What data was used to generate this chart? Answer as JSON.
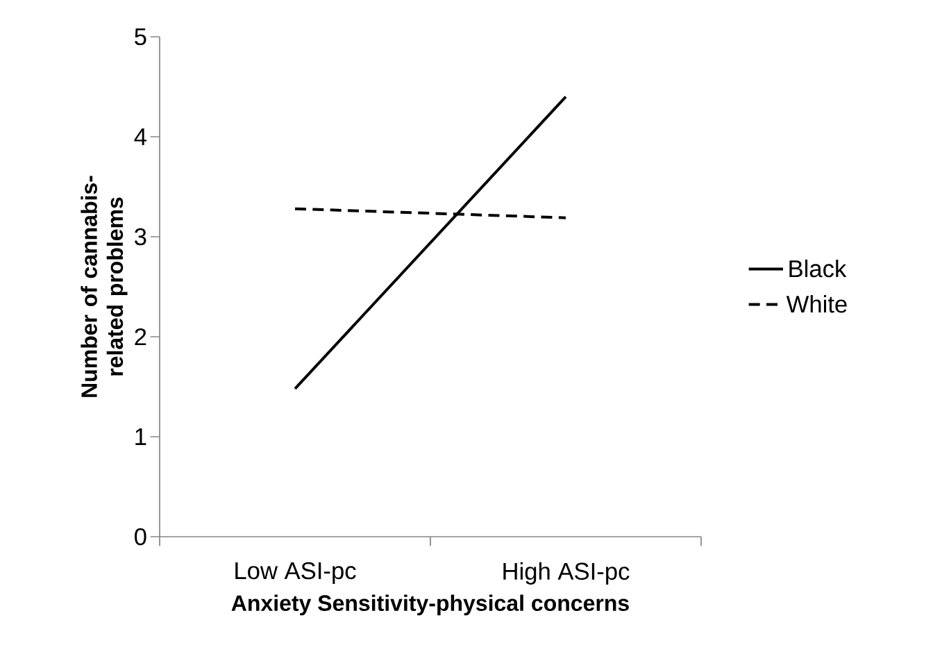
{
  "chart_data": {
    "type": "line",
    "xlabel": "Anxiety Sensitivity-physical concerns",
    "ylabel": "Number of cannabis-related problems",
    "categories": [
      "Low ASI-pc",
      "High ASI-pc"
    ],
    "series": [
      {
        "name": "Black",
        "color": "#000000",
        "line_style": "solid",
        "values": [
          1.48,
          4.4
        ]
      },
      {
        "name": "White",
        "color": "#000000",
        "line_style": "dashed",
        "values": [
          3.28,
          3.19
        ]
      }
    ],
    "ylim": [
      0,
      5
    ],
    "yticks": [
      0,
      1,
      2,
      3,
      4,
      5
    ],
    "legend": "right",
    "marker": "none",
    "grid": false
  }
}
